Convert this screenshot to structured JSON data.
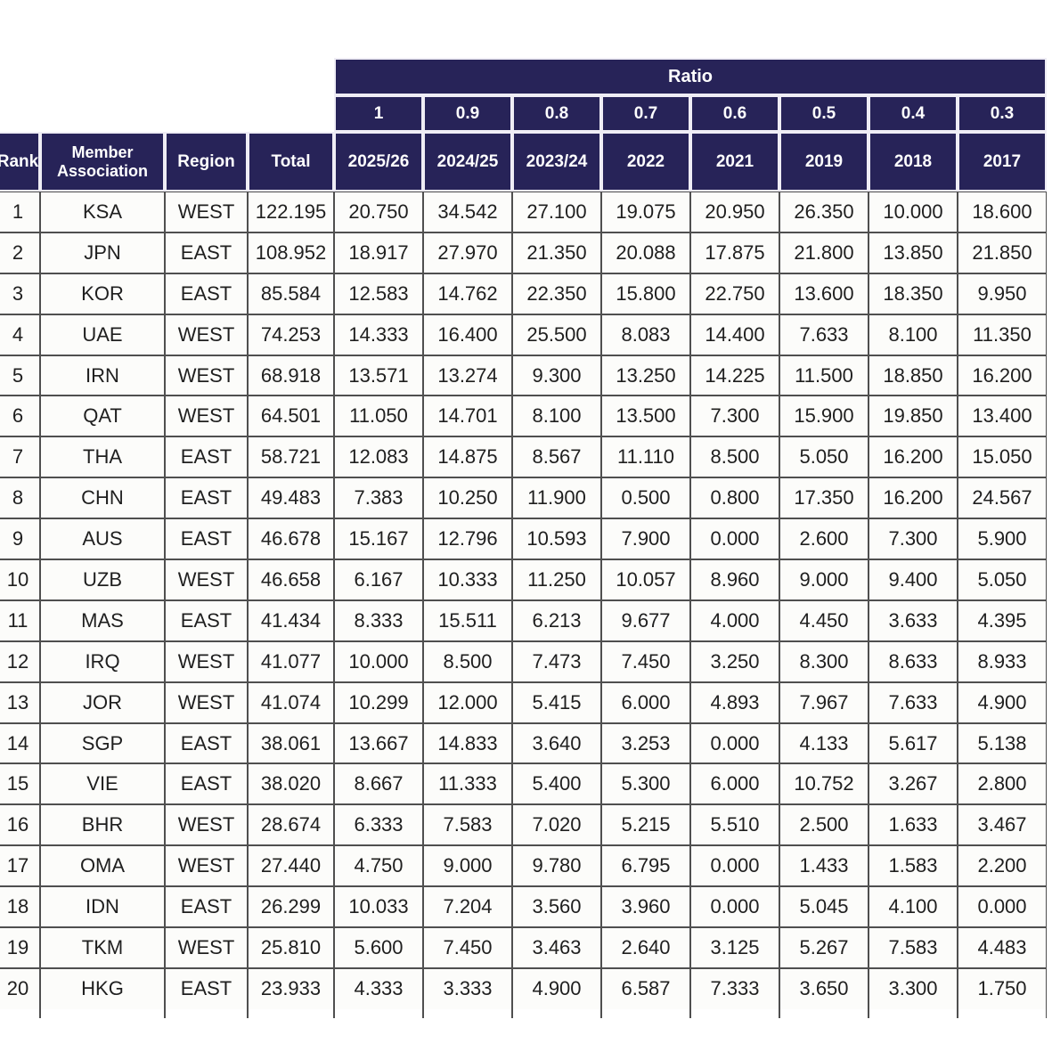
{
  "colors": {
    "header_navy": "#272358",
    "header_divider": "#efedf5",
    "body_border": "#4f4f4f",
    "body_background": "#fcfcfa",
    "body_text": "#1f1f1f"
  },
  "chart_data": {
    "type": "table",
    "ratio_band": {
      "title": "Ratio",
      "ratios": [
        "1",
        "0.9",
        "0.8",
        "0.7",
        "0.6",
        "0.5",
        "0.4",
        "0.3"
      ]
    },
    "columns": [
      "Rank",
      "Member Association",
      "Region",
      "Total",
      "2025/26",
      "2024/25",
      "2023/24",
      "2022",
      "2021",
      "2019",
      "2018",
      "2017"
    ],
    "rows": [
      {
        "rank": "1",
        "association": "KSA",
        "region": "WEST",
        "total": "122.195",
        "values": [
          "20.750",
          "34.542",
          "27.100",
          "19.075",
          "20.950",
          "26.350",
          "10.000",
          "18.600"
        ]
      },
      {
        "rank": "2",
        "association": "JPN",
        "region": "EAST",
        "total": "108.952",
        "values": [
          "18.917",
          "27.970",
          "21.350",
          "20.088",
          "17.875",
          "21.800",
          "13.850",
          "21.850"
        ]
      },
      {
        "rank": "3",
        "association": "KOR",
        "region": "EAST",
        "total": "85.584",
        "values": [
          "12.583",
          "14.762",
          "22.350",
          "15.800",
          "22.750",
          "13.600",
          "18.350",
          "9.950"
        ]
      },
      {
        "rank": "4",
        "association": "UAE",
        "region": "WEST",
        "total": "74.253",
        "values": [
          "14.333",
          "16.400",
          "25.500",
          "8.083",
          "14.400",
          "7.633",
          "8.100",
          "11.350"
        ]
      },
      {
        "rank": "5",
        "association": "IRN",
        "region": "WEST",
        "total": "68.918",
        "values": [
          "13.571",
          "13.274",
          "9.300",
          "13.250",
          "14.225",
          "11.500",
          "18.850",
          "16.200"
        ]
      },
      {
        "rank": "6",
        "association": "QAT",
        "region": "WEST",
        "total": "64.501",
        "values": [
          "11.050",
          "14.701",
          "8.100",
          "13.500",
          "7.300",
          "15.900",
          "19.850",
          "13.400"
        ]
      },
      {
        "rank": "7",
        "association": "THA",
        "region": "EAST",
        "total": "58.721",
        "values": [
          "12.083",
          "14.875",
          "8.567",
          "11.110",
          "8.500",
          "5.050",
          "16.200",
          "15.050"
        ]
      },
      {
        "rank": "8",
        "association": "CHN",
        "region": "EAST",
        "total": "49.483",
        "values": [
          "7.383",
          "10.250",
          "11.900",
          "0.500",
          "0.800",
          "17.350",
          "16.200",
          "24.567"
        ]
      },
      {
        "rank": "9",
        "association": "AUS",
        "region": "EAST",
        "total": "46.678",
        "values": [
          "15.167",
          "12.796",
          "10.593",
          "7.900",
          "0.000",
          "2.600",
          "7.300",
          "5.900"
        ]
      },
      {
        "rank": "10",
        "association": "UZB",
        "region": "WEST",
        "total": "46.658",
        "values": [
          "6.167",
          "10.333",
          "11.250",
          "10.057",
          "8.960",
          "9.000",
          "9.400",
          "5.050"
        ]
      },
      {
        "rank": "11",
        "association": "MAS",
        "region": "EAST",
        "total": "41.434",
        "values": [
          "8.333",
          "15.511",
          "6.213",
          "9.677",
          "4.000",
          "4.450",
          "3.633",
          "4.395"
        ]
      },
      {
        "rank": "12",
        "association": "IRQ",
        "region": "WEST",
        "total": "41.077",
        "values": [
          "10.000",
          "8.500",
          "7.473",
          "7.450",
          "3.250",
          "8.300",
          "8.633",
          "8.933"
        ]
      },
      {
        "rank": "13",
        "association": "JOR",
        "region": "WEST",
        "total": "41.074",
        "values": [
          "10.299",
          "12.000",
          "5.415",
          "6.000",
          "4.893",
          "7.967",
          "7.633",
          "4.900"
        ]
      },
      {
        "rank": "14",
        "association": "SGP",
        "region": "EAST",
        "total": "38.061",
        "values": [
          "13.667",
          "14.833",
          "3.640",
          "3.253",
          "0.000",
          "4.133",
          "5.617",
          "5.138"
        ]
      },
      {
        "rank": "15",
        "association": "VIE",
        "region": "EAST",
        "total": "38.020",
        "values": [
          "8.667",
          "11.333",
          "5.400",
          "5.300",
          "6.000",
          "10.752",
          "3.267",
          "2.800"
        ]
      },
      {
        "rank": "16",
        "association": "BHR",
        "region": "WEST",
        "total": "28.674",
        "values": [
          "6.333",
          "7.583",
          "7.020",
          "5.215",
          "5.510",
          "2.500",
          "1.633",
          "3.467"
        ]
      },
      {
        "rank": "17",
        "association": "OMA",
        "region": "WEST",
        "total": "27.440",
        "values": [
          "4.750",
          "9.000",
          "9.780",
          "6.795",
          "0.000",
          "1.433",
          "1.583",
          "2.200"
        ]
      },
      {
        "rank": "18",
        "association": "IDN",
        "region": "EAST",
        "total": "26.299",
        "values": [
          "10.033",
          "7.204",
          "3.560",
          "3.960",
          "0.000",
          "5.045",
          "4.100",
          "0.000"
        ]
      },
      {
        "rank": "19",
        "association": "TKM",
        "region": "WEST",
        "total": "25.810",
        "values": [
          "5.600",
          "7.450",
          "3.463",
          "2.640",
          "3.125",
          "5.267",
          "7.583",
          "4.483"
        ]
      },
      {
        "rank": "20",
        "association": "HKG",
        "region": "EAST",
        "total": "23.933",
        "values": [
          "4.333",
          "3.333",
          "4.900",
          "6.587",
          "7.333",
          "3.650",
          "3.300",
          "1.750"
        ]
      }
    ]
  }
}
